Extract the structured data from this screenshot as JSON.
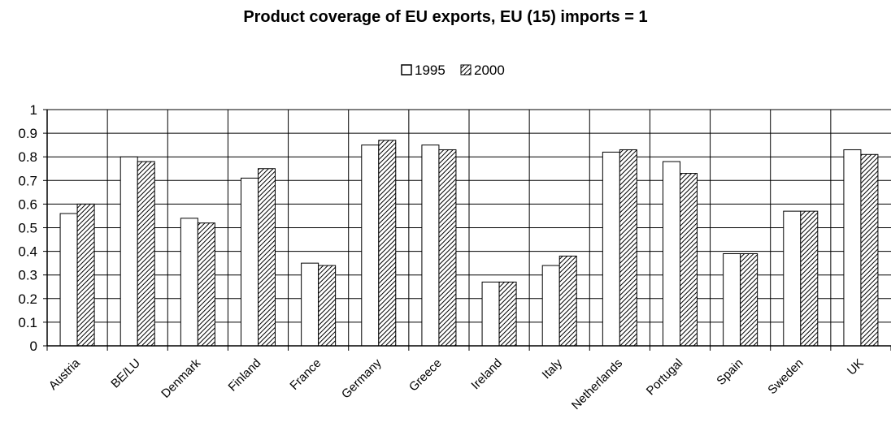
{
  "chart_data": {
    "type": "bar",
    "title": "Product coverage of EU exports, EU (15) imports = 1",
    "xlabel": "",
    "ylabel": "",
    "ylim": [
      0,
      1
    ],
    "yticks": [
      "0",
      "0.1",
      "0.2",
      "0.3",
      "0.4",
      "0.5",
      "0.6",
      "0.7",
      "0.8",
      "0.9",
      "1"
    ],
    "categories": [
      "Austria",
      "BE/LU",
      "Denmark",
      "Finland",
      "France",
      "Germany",
      "Greece",
      "Ireland",
      "Italy",
      "Netherlands",
      "Portugal",
      "Spain",
      "Sweden",
      "UK"
    ],
    "series": [
      {
        "name": "1995",
        "values": [
          0.56,
          0.8,
          0.54,
          0.71,
          0.35,
          0.85,
          0.85,
          0.27,
          0.34,
          0.82,
          0.78,
          0.39,
          0.57,
          0.83
        ]
      },
      {
        "name": "2000",
        "values": [
          0.6,
          0.78,
          0.52,
          0.75,
          0.34,
          0.87,
          0.83,
          0.27,
          0.38,
          0.83,
          0.73,
          0.39,
          0.57,
          0.81
        ]
      }
    ],
    "grid": true,
    "legend_position": "top-center",
    "series_fills": [
      "white",
      "diagonal-hatch"
    ],
    "colors": {
      "bar_stroke": "#000000",
      "grid": "#000000",
      "fill_1995": "#ffffff",
      "hatch": "#000000"
    }
  }
}
